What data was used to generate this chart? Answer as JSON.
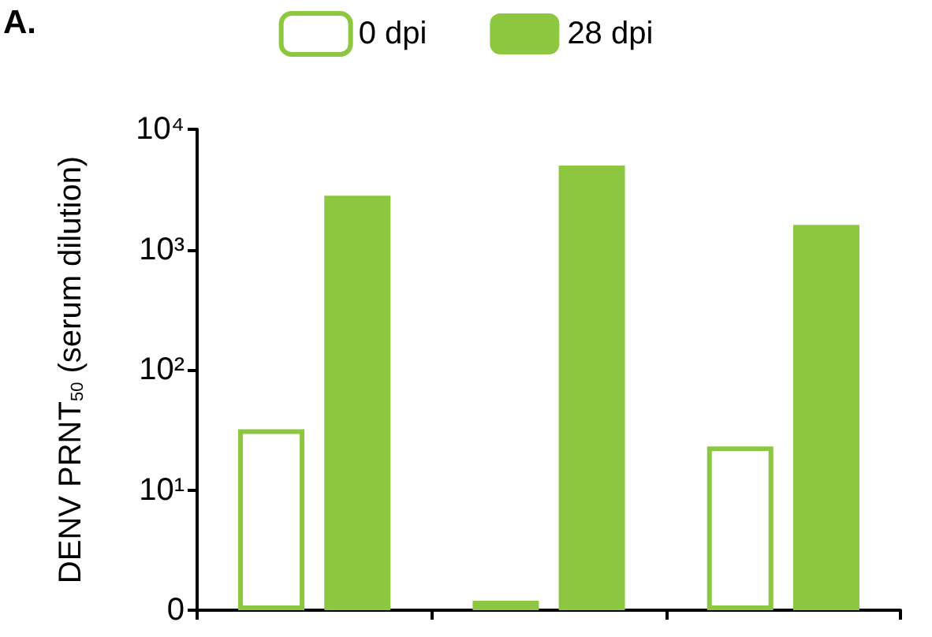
{
  "chart_data": {
    "type": "bar",
    "annotations": [
      "A."
    ],
    "ylabel": "DENV PRNT$_{50}$ (serum dilution)",
    "categories": [
      null,
      null,
      null
    ],
    "series": [
      {
        "name": "0 dpi",
        "color": "#8dc63f",
        "values": [
          32,
          1.2,
          23
        ]
      },
      {
        "name": "28 dpi",
        "color": "#8dc63f",
        "values": [
          2800,
          5000,
          1600
        ]
      }
    ],
    "log": true,
    "ylim": [
      0,
      10000
    ],
    "yticks": [
      0,
      {
        "value": 10,
        "label": "10¹"
      },
      {
        "value": 100,
        "label": "10²"
      },
      {
        "value": 1000,
        "label": "10³"
      },
      {
        "value": 10000,
        "label": "10⁴"
      }
    ],
    "legend": "top",
    "grid": false,
    "tick_labels": "y"
  }
}
